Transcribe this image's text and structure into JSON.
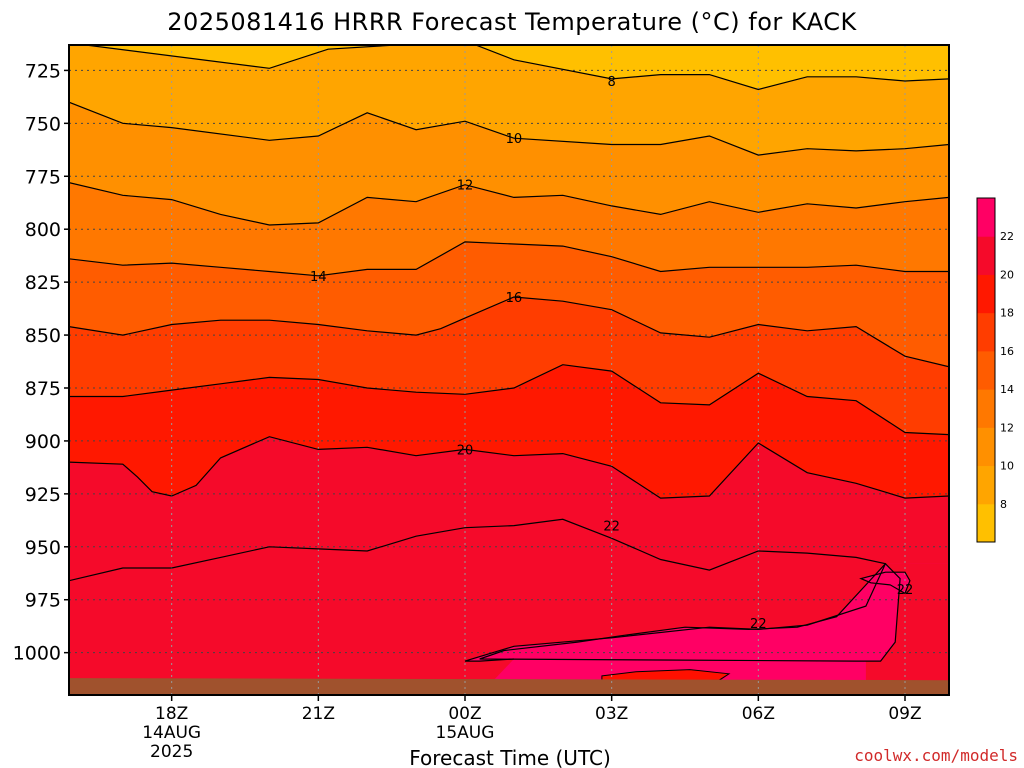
{
  "chart_data": {
    "type": "heatmap",
    "title": "2025081416 HRRR Forecast Temperature (°C) for KACK",
    "xlabel": "Forecast Time (UTC)",
    "ylabel": "",
    "y_inverted": true,
    "ylim": [
      1020,
      713
    ],
    "xlim": [
      15.9,
      33.9
    ],
    "grid": true,
    "y_ticks": [
      {
        "value": 725,
        "label": "725"
      },
      {
        "value": 750,
        "label": "750"
      },
      {
        "value": 775,
        "label": "775"
      },
      {
        "value": 800,
        "label": "800"
      },
      {
        "value": 825,
        "label": "825"
      },
      {
        "value": 850,
        "label": "850"
      },
      {
        "value": 875,
        "label": "875"
      },
      {
        "value": 900,
        "label": "900"
      },
      {
        "value": 925,
        "label": "925"
      },
      {
        "value": 950,
        "label": "950"
      },
      {
        "value": 975,
        "label": "975"
      },
      {
        "value": 1000,
        "label": "1000"
      }
    ],
    "x_ticks": [
      {
        "value": 18,
        "lines": [
          "18Z",
          "14AUG",
          "2025"
        ]
      },
      {
        "value": 21,
        "lines": [
          "21Z"
        ]
      },
      {
        "value": 24,
        "lines": [
          "00Z",
          "15AUG"
        ]
      },
      {
        "value": 27,
        "lines": [
          "03Z"
        ]
      },
      {
        "value": 30,
        "lines": [
          "06Z"
        ]
      },
      {
        "value": 33,
        "lines": [
          "09Z"
        ]
      }
    ],
    "colorbar": {
      "levels": [
        6,
        8,
        10,
        12,
        14,
        16,
        18,
        20,
        22,
        24
      ],
      "colors": [
        "#ffc000",
        "#ffa500",
        "#ff9000",
        "#ff7800",
        "#ff5c00",
        "#ff3d00",
        "#ff1800",
        "#f50a2a",
        "#ff0064"
      ],
      "labels": [
        "8",
        "10",
        "12",
        "14",
        "16",
        "18",
        "20",
        "22"
      ]
    },
    "ground_color": "#a0522d",
    "isotherms": [
      {
        "value": 8,
        "label": "8",
        "label_at": [
          27,
          730
        ],
        "points": [
          [
            15.9,
            712
          ],
          [
            20,
            724
          ],
          [
            21.2,
            715
          ],
          [
            24,
            711
          ],
          [
            25,
            720
          ],
          [
            27,
            729
          ],
          [
            28,
            727
          ],
          [
            29,
            727
          ],
          [
            30,
            734
          ],
          [
            31,
            728
          ],
          [
            32,
            728
          ],
          [
            33,
            730
          ],
          [
            33.9,
            729
          ]
        ]
      },
      {
        "value": 10,
        "label": "10",
        "label_at": [
          25,
          757
        ],
        "points": [
          [
            15.9,
            740
          ],
          [
            17,
            750
          ],
          [
            18,
            752
          ],
          [
            20,
            758
          ],
          [
            21,
            756
          ],
          [
            22,
            745
          ],
          [
            23,
            753
          ],
          [
            24,
            749
          ],
          [
            25,
            757
          ],
          [
            27,
            760
          ],
          [
            28,
            760
          ],
          [
            29,
            756
          ],
          [
            30,
            765
          ],
          [
            31,
            762
          ],
          [
            32,
            763
          ],
          [
            33,
            762
          ],
          [
            33.9,
            760
          ]
        ]
      },
      {
        "value": 12,
        "label": "12",
        "label_at": [
          24,
          779
        ],
        "points": [
          [
            15.9,
            778
          ],
          [
            17,
            784
          ],
          [
            18,
            786
          ],
          [
            19,
            793
          ],
          [
            20,
            798
          ],
          [
            21,
            797
          ],
          [
            22,
            785
          ],
          [
            23,
            787
          ],
          [
            24,
            779
          ],
          [
            25,
            785
          ],
          [
            26,
            784
          ],
          [
            27,
            789
          ],
          [
            28,
            793
          ],
          [
            29,
            787
          ],
          [
            30,
            792
          ],
          [
            31,
            788
          ],
          [
            32,
            790
          ],
          [
            33,
            787
          ],
          [
            33.9,
            785
          ]
        ]
      },
      {
        "value": 14,
        "label": "14",
        "label_at": [
          21,
          822
        ],
        "points": [
          [
            15.9,
            814
          ],
          [
            17,
            817
          ],
          [
            18,
            816
          ],
          [
            19,
            818
          ],
          [
            20,
            820
          ],
          [
            21,
            822
          ],
          [
            22,
            819
          ],
          [
            23,
            819
          ],
          [
            24,
            806
          ],
          [
            25,
            807
          ],
          [
            26,
            808
          ],
          [
            27,
            813
          ],
          [
            28,
            820
          ],
          [
            29,
            818
          ],
          [
            30,
            818
          ],
          [
            31,
            818
          ],
          [
            32,
            817
          ],
          [
            33,
            820
          ],
          [
            33.9,
            820
          ]
        ]
      },
      {
        "value": 16,
        "label": "16",
        "label_at": [
          25,
          832
        ],
        "points": [
          [
            15.9,
            846
          ],
          [
            17,
            850
          ],
          [
            18,
            845
          ],
          [
            19,
            843
          ],
          [
            20,
            843
          ],
          [
            21,
            845
          ],
          [
            22,
            848
          ],
          [
            23,
            850
          ],
          [
            23.5,
            847
          ],
          [
            24,
            842
          ],
          [
            25,
            832
          ],
          [
            26,
            834
          ],
          [
            27,
            838
          ],
          [
            28,
            849
          ],
          [
            29,
            851
          ],
          [
            30,
            845
          ],
          [
            31,
            848
          ],
          [
            32,
            846
          ],
          [
            33,
            860
          ],
          [
            33.9,
            865
          ]
        ]
      },
      {
        "value": 18,
        "label": "",
        "points": [
          [
            15.9,
            879
          ],
          [
            17,
            879
          ],
          [
            18,
            876
          ],
          [
            19,
            873
          ],
          [
            20,
            870
          ],
          [
            21,
            871
          ],
          [
            22,
            875
          ],
          [
            23,
            877
          ],
          [
            24,
            878
          ],
          [
            25,
            875
          ],
          [
            26,
            864
          ],
          [
            27,
            867
          ],
          [
            28,
            882
          ],
          [
            29,
            883
          ],
          [
            30,
            868
          ],
          [
            31,
            879
          ],
          [
            32,
            881
          ],
          [
            33,
            896
          ],
          [
            33.9,
            897
          ]
        ]
      },
      {
        "value": 20,
        "label": "20",
        "label_at": [
          24,
          904
        ],
        "points": [
          [
            15.9,
            910
          ],
          [
            17,
            911
          ],
          [
            17.3,
            917
          ],
          [
            17.6,
            924
          ],
          [
            18,
            926
          ],
          [
            18.5,
            921
          ],
          [
            19,
            908
          ],
          [
            20,
            898
          ],
          [
            21,
            904
          ],
          [
            22,
            903
          ],
          [
            23,
            907
          ],
          [
            24,
            904
          ],
          [
            25,
            907
          ],
          [
            26,
            906
          ],
          [
            27,
            912
          ],
          [
            28,
            927
          ],
          [
            29,
            926
          ],
          [
            30,
            901
          ],
          [
            31,
            915
          ],
          [
            32,
            920
          ],
          [
            33,
            927
          ],
          [
            33.9,
            926
          ]
        ]
      },
      {
        "value": 22,
        "label": "22",
        "label_at": [
          27,
          940
        ],
        "points": [
          [
            15.9,
            966
          ],
          [
            17,
            960
          ],
          [
            18,
            960
          ],
          [
            19,
            955
          ],
          [
            20,
            950
          ],
          [
            21,
            951
          ],
          [
            22,
            952
          ],
          [
            23,
            945
          ],
          [
            24,
            941
          ],
          [
            25,
            940
          ],
          [
            26,
            937
          ],
          [
            27,
            946
          ],
          [
            28,
            956
          ],
          [
            29,
            961
          ],
          [
            30,
            952
          ],
          [
            31,
            953
          ],
          [
            32,
            955
          ],
          [
            32.6,
            958
          ]
        ],
        "closing": [
          [
            32.6,
            958
          ],
          [
            32.2,
            978
          ],
          [
            31,
            987
          ],
          [
            30,
            989
          ],
          [
            29,
            988
          ],
          [
            27,
            993
          ],
          [
            25,
            997
          ],
          [
            24,
            1004
          ],
          [
            24.3,
            1004
          ],
          [
            25,
            1003
          ]
        ]
      },
      {
        "value": 22,
        "label": "22",
        "label_at": [
          30,
          986
        ],
        "closed": true,
        "points": [
          [
            32,
            1004
          ],
          [
            32.5,
            1004
          ],
          [
            32.8,
            995
          ],
          [
            32.9,
            965
          ],
          [
            32.6,
            958
          ],
          [
            32.2,
            968
          ],
          [
            31.6,
            983
          ],
          [
            30.8,
            988
          ],
          [
            29.8,
            989
          ],
          [
            28.5,
            988
          ],
          [
            27.2,
            992
          ],
          [
            26.3,
            995
          ],
          [
            24.8,
            999
          ],
          [
            24.3,
            1003
          ]
        ]
      },
      {
        "value": 22,
        "label": "22",
        "label_at": [
          33,
          970
        ],
        "closed": true,
        "points": [
          [
            32.1,
            965
          ],
          [
            32.6,
            962
          ],
          [
            33,
            962
          ],
          [
            33.1,
            966
          ],
          [
            33,
            972
          ],
          [
            32.7,
            968
          ],
          [
            32.3,
            967
          ]
        ]
      }
    ]
  },
  "credit": "coolwx.com/models"
}
